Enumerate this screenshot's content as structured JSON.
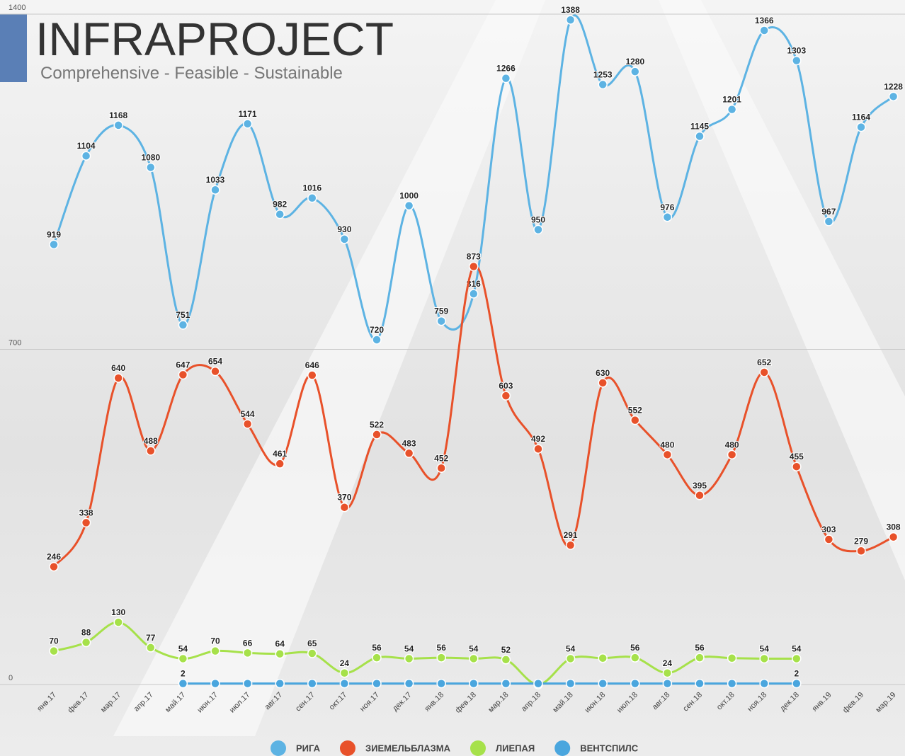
{
  "chart_data": {
    "type": "line",
    "logo_title": "INFRAPROJECT",
    "logo_subtitle": "Comprehensive - Feasible - Sustainable",
    "categories": [
      "янв.17",
      "фев.17",
      "мар.17",
      "апр.17",
      "май.17",
      "июн.17",
      "июл.17",
      "авг.17",
      "сен.17",
      "окт.17",
      "ноя.17",
      "дек.17",
      "янв.18",
      "фев.18",
      "мар.18",
      "апр.18",
      "май.18",
      "июн.18",
      "июл.18",
      "авг.18",
      "сен.18",
      "окт.18",
      "ноя.18",
      "дек.18",
      "янв.19",
      "фев.19",
      "мар.19"
    ],
    "ylim": [
      0,
      1400
    ],
    "yticks": [
      0,
      700,
      1400
    ],
    "grid": true,
    "series": [
      {
        "name": "РИГА",
        "color": "#5db3e3",
        "values": [
          919,
          1104,
          1168,
          1080,
          751,
          1033,
          1171,
          982,
          1016,
          930,
          720,
          1000,
          759,
          816,
          1266,
          950,
          1388,
          1253,
          1280,
          976,
          1145,
          1201,
          1366,
          1303,
          967,
          1164,
          1228
        ]
      },
      {
        "name": "ЗИЕМЕЛЬБЛАЗМА",
        "color": "#e8512a",
        "values": [
          246,
          338,
          640,
          488,
          647,
          654,
          544,
          461,
          646,
          370,
          522,
          483,
          452,
          873,
          603,
          492,
          291,
          630,
          552,
          480,
          395,
          480,
          652,
          455,
          303,
          279,
          308
        ]
      },
      {
        "name": "ЛИЕПАЯ",
        "color": "#a6e14a",
        "values": [
          70,
          88,
          130,
          77,
          54,
          70,
          66,
          64,
          65,
          24,
          56,
          54,
          56,
          54,
          52,
          0,
          54,
          55,
          56,
          24,
          56,
          55,
          54,
          54,
          null,
          null,
          null
        ],
        "value_labels": [
          "70",
          "88",
          "130",
          "77",
          "54",
          "70",
          "66",
          "64",
          "65",
          "24",
          "56",
          "54",
          "56",
          "54",
          "52",
          null,
          "54",
          null,
          "56",
          "24",
          "56",
          null,
          "54",
          "54",
          null,
          null,
          null
        ]
      },
      {
        "name": "ВЕНТСПИЛС",
        "color": "#4aa6de",
        "values": [
          null,
          null,
          null,
          null,
          2,
          2,
          2,
          2,
          2,
          2,
          2,
          2,
          2,
          2,
          2,
          2,
          2,
          2,
          2,
          2,
          2,
          2,
          2,
          2,
          null,
          null,
          null
        ],
        "value_labels": [
          null,
          null,
          null,
          null,
          "2",
          null,
          null,
          null,
          null,
          null,
          null,
          null,
          null,
          null,
          null,
          null,
          null,
          null,
          null,
          null,
          null,
          null,
          null,
          "2",
          null,
          null,
          null
        ]
      }
    ]
  }
}
